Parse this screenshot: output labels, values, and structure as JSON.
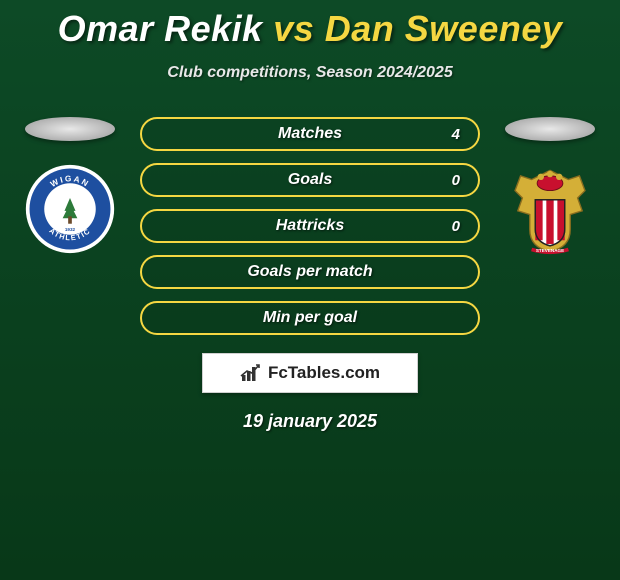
{
  "title": {
    "player1": "Omar Rekik",
    "vs": "vs",
    "player2": "Dan Sweeney"
  },
  "subtitle": "Club competitions, Season 2024/2025",
  "stats": [
    {
      "label": "Matches",
      "value": "4",
      "border_color": "#f5d742"
    },
    {
      "label": "Goals",
      "value": "0",
      "border_color": "#f5d742"
    },
    {
      "label": "Hattricks",
      "value": "0",
      "border_color": "#f5d742"
    },
    {
      "label": "Goals per match",
      "value": "",
      "border_color": "#f5d742"
    },
    {
      "label": "Min per goal",
      "value": "",
      "border_color": "#f5d742"
    }
  ],
  "branding": "FcTables.com",
  "date": "19 january 2025",
  "crest_left": {
    "name": "wigan-athletic-crest",
    "ring_outer": "#ffffff",
    "ring_inner": "#1e4fa0",
    "center": "#ffffff",
    "tree": "#2d7a3a",
    "text_top": "WIGAN",
    "text_bottom": "ATHLETIC"
  },
  "crest_right": {
    "name": "stevenage-crest",
    "shield": "#ffffff",
    "stripe1": "#c8102e",
    "stripe2": "#ffffff",
    "top": "#d4af37"
  },
  "palette": {
    "bg_top": "#0d4a26",
    "bg_bottom": "#083818",
    "accent": "#f5d742",
    "text": "#ffffff"
  }
}
